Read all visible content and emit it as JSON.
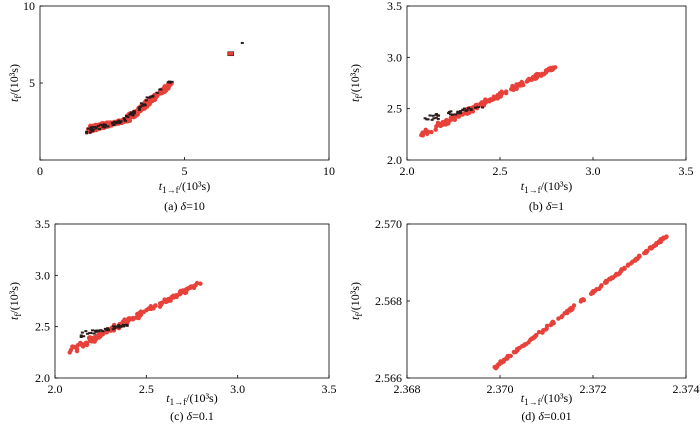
{
  "colors": {
    "series_main": "#e8413a",
    "series_dark": "#2a1a1a",
    "frame": "#000000"
  },
  "chart_data": [
    {
      "type": "scatter",
      "caption": "(a) δ=10",
      "caption_prefix": "(a) ",
      "caption_var": "δ",
      "caption_val": "=10",
      "xlabel": "t1→f/(10³s)",
      "ylabel": "tf/(10³s)",
      "xlim": [
        0,
        10
      ],
      "ylim": [
        0,
        10
      ],
      "xticks": [
        "0",
        "5",
        "10"
      ],
      "yticks": [
        "",
        "5",
        "10"
      ],
      "xtick_values": [
        0,
        5,
        10
      ],
      "ytick_values": [
        0,
        5,
        10
      ],
      "series": [
        {
          "name": "points",
          "segments": [
            [
              1.7,
              2.0,
              3.0,
              2.6,
              4.5,
              4.9
            ]
          ],
          "isolated": [
            [
              6.6,
              6.9
            ]
          ]
        },
        {
          "name": "dark",
          "segments": [
            [
              1.6,
              1.9,
              2.8,
              2.5,
              4.6,
              5.2
            ]
          ],
          "isolated": [
            [
              7.0,
              7.6
            ]
          ]
        }
      ]
    },
    {
      "type": "scatter",
      "caption": "(b) δ=1",
      "caption_prefix": "(b) ",
      "caption_var": "δ",
      "caption_val": "=1",
      "xlabel": "t1→f/(10³s)",
      "ylabel": "tf/(10³s)",
      "xlim": [
        2.0,
        3.5
      ],
      "ylim": [
        2.0,
        3.5
      ],
      "xticks": [
        "2.0",
        "2.5",
        "3.0",
        "3.5"
      ],
      "yticks": [
        "2.0",
        "2.5",
        "3.0",
        "3.5"
      ],
      "xtick_values": [
        2.0,
        2.5,
        3.0,
        3.5
      ],
      "ytick_values": [
        2.0,
        2.5,
        3.0,
        3.5
      ],
      "series": [
        {
          "name": "points",
          "segments": [
            [
              2.08,
              2.25,
              2.8,
              2.91
            ]
          ],
          "isolated": []
        },
        {
          "name": "dark",
          "segments": [
            [
              2.1,
              2.4,
              2.4,
              2.52
            ]
          ],
          "isolated": []
        }
      ]
    },
    {
      "type": "scatter",
      "caption": "(c) δ=0.1",
      "caption_prefix": "(c) ",
      "caption_var": "δ",
      "caption_val": "=0.1",
      "xlabel": "t1→f/(10³s)",
      "ylabel": "tf/(10³s)",
      "xlim": [
        2.0,
        3.5
      ],
      "ylim": [
        2.0,
        3.5
      ],
      "xticks": [
        "2.0",
        "2.5",
        "3.0",
        "3.5"
      ],
      "yticks": [
        "2.0",
        "2.5",
        "3.0",
        "3.5"
      ],
      "xtick_values": [
        2.0,
        2.5,
        3.0,
        3.5
      ],
      "ytick_values": [
        2.0,
        2.5,
        3.0,
        3.5
      ],
      "series": [
        {
          "name": "points",
          "segments": [
            [
              2.08,
              2.26,
              2.79,
              2.92
            ]
          ],
          "isolated": []
        },
        {
          "name": "dark",
          "segments": [
            [
              2.15,
              2.42,
              2.4,
              2.52
            ]
          ],
          "isolated": []
        }
      ]
    },
    {
      "type": "scatter",
      "caption": "(d) δ=0.01",
      "caption_prefix": "(d) ",
      "caption_var": "δ",
      "caption_val": "=0.01",
      "xlabel": "t1→f/(10³s)",
      "ylabel": "tf/(10³s)",
      "xlim": [
        2.368,
        2.374
      ],
      "ylim": [
        2.566,
        2.57
      ],
      "xticks": [
        "2.368",
        "2.370",
        "2.372",
        "2.374"
      ],
      "yticks": [
        "2.566",
        "2.568",
        "2.570"
      ],
      "xtick_values": [
        2.368,
        2.37,
        2.372,
        2.374
      ],
      "ytick_values": [
        2.566,
        2.568,
        2.57
      ],
      "series": [
        {
          "name": "points",
          "segments": [
            [
              2.3698,
              2.5662,
              2.3736,
              2.5697
            ]
          ],
          "isolated": []
        }
      ]
    }
  ]
}
